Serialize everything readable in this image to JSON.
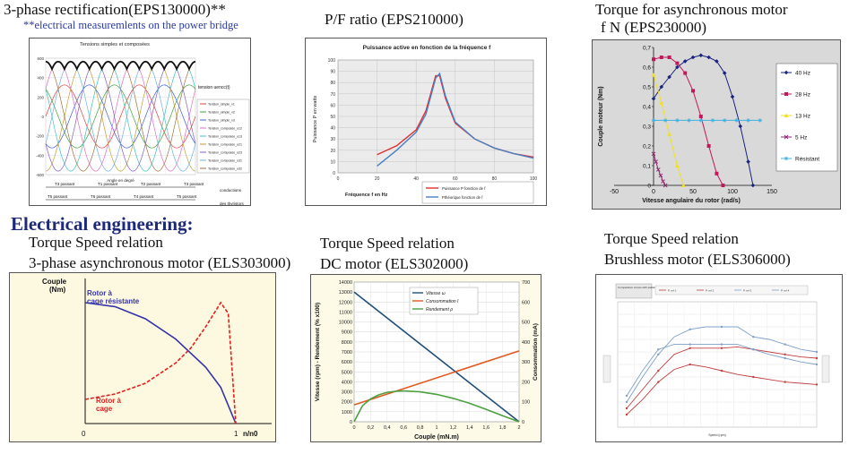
{
  "captions": {
    "rect_title": "3-phase rectification(EPS130000)**",
    "rect_sub": "**electrical measuremlents on the power bridge",
    "pf_title": "P/F ratio (EPS210000)",
    "async_title_l1": "Torque for asynchronous motor",
    "async_title_l2": "f  N (EPS230000)",
    "section_heading": "Electrical engineering:",
    "ts1_l1": "Torque Speed relation",
    "ts1_l2": "3-phase asynchronous motor  (ELS303000)",
    "ts2_l1": "Torque Speed relation",
    "ts2_l2": "DC motor (ELS302000)",
    "ts3_l1": "Torque Speed relation",
    "ts3_l2": "Brushless motor (ELS306000)"
  },
  "chart_data": [
    {
      "id": "rect",
      "type": "line",
      "title": "Tensions simples et composées",
      "xlabel": "Angle en degré",
      "ylim": [
        -600,
        600
      ],
      "yticks": [
        600,
        400,
        200,
        0,
        -200,
        -400,
        -600
      ],
      "legend_title": "tension uencc(t)",
      "legend": [
        "Tension_simple_v1",
        "Tension_simple_v2",
        "Tension_simple_v3",
        "Tension_composée_u12",
        "Tension_composée_u13",
        "Tension_composée_u21",
        "Tension_composée_u23",
        "Tension_composée_u31",
        "Tension_composée_u32"
      ],
      "conduction_label_1": "conductions",
      "conduction_label_2": "des thyristors",
      "top_conductions": [
        "T3 passant",
        "T1 passant",
        "T2 passant",
        "T3 passant"
      ],
      "bottom_conductions": [
        "T5 passant",
        "T6 passant",
        "T4 passant",
        "T5 passant"
      ]
    },
    {
      "id": "pf",
      "type": "line",
      "title": "Puissance active en fonction de la fréquence f",
      "xlabel": "Fréquence f en Hz",
      "ylabel": "Puissance P en watts",
      "xlim": [
        0,
        100
      ],
      "ylim": [
        0,
        100
      ],
      "xticks": [
        0,
        20,
        40,
        60,
        80,
        100
      ],
      "yticks": [
        0,
        10,
        20,
        30,
        40,
        50,
        60,
        70,
        80,
        90,
        100
      ],
      "series": [
        {
          "name": "Puissance P fonction de f",
          "color": "#e03030",
          "x": [
            20,
            30,
            40,
            45,
            50,
            52,
            55,
            60,
            70,
            80,
            90,
            100
          ],
          "y": [
            16,
            24,
            38,
            55,
            86,
            86,
            66,
            44,
            30,
            22,
            17,
            14
          ]
        },
        {
          "name": "Pthéorique fonction de f",
          "color": "#4a7fc0",
          "x": [
            20,
            30,
            40,
            45,
            50,
            52,
            55,
            60,
            70,
            80,
            90,
            100
          ],
          "y": [
            6,
            20,
            36,
            52,
            84,
            88,
            68,
            45,
            30,
            22,
            17,
            13
          ]
        }
      ]
    },
    {
      "id": "async",
      "type": "line",
      "xlabel": "Vitesse angulaire du rotor (rad/s)",
      "ylabel": "Couple moteur (Nm)",
      "xlim": [
        -50,
        150
      ],
      "ylim": [
        0,
        0.7
      ],
      "xticks": [
        -50,
        0,
        50,
        100,
        150
      ],
      "yticks": [
        "0",
        "0,1",
        "0,2",
        "0,3",
        "0,4",
        "0,5",
        "0,6",
        "0,7"
      ],
      "series": [
        {
          "name": "40 Hz",
          "color": "#1a237e",
          "marker": "diamond",
          "x": [
            0,
            10,
            20,
            30,
            40,
            50,
            60,
            70,
            80,
            90,
            100,
            110,
            120,
            126
          ],
          "y": [
            0.44,
            0.5,
            0.55,
            0.6,
            0.63,
            0.65,
            0.66,
            0.65,
            0.63,
            0.57,
            0.45,
            0.3,
            0.12,
            0.0
          ]
        },
        {
          "name": "28 Hz",
          "color": "#c2185b",
          "marker": "square",
          "x": [
            0,
            10,
            20,
            30,
            40,
            50,
            60,
            70,
            80,
            88
          ],
          "y": [
            0.64,
            0.65,
            0.65,
            0.62,
            0.57,
            0.48,
            0.35,
            0.2,
            0.06,
            0.0
          ]
        },
        {
          "name": "13 Hz",
          "color": "#f0e020",
          "marker": "triangle",
          "x": [
            0,
            10,
            20,
            30,
            38
          ],
          "y": [
            0.56,
            0.42,
            0.26,
            0.1,
            0.0
          ]
        },
        {
          "name": "5 Hz",
          "color": "#8e2470",
          "marker": "x",
          "x": [
            0,
            3,
            6,
            9,
            12,
            15
          ],
          "y": [
            0.16,
            0.12,
            0.08,
            0.05,
            0.02,
            0.0
          ]
        },
        {
          "name": "Résistant",
          "color": "#40b0e0",
          "marker": "star",
          "x": [
            0,
            15,
            30,
            45,
            60,
            75,
            90,
            105,
            120,
            135
          ],
          "y": [
            0.33,
            0.33,
            0.33,
            0.33,
            0.33,
            0.33,
            0.33,
            0.33,
            0.33,
            0.33
          ]
        }
      ]
    },
    {
      "id": "ts1",
      "type": "line",
      "ylabel_l1": "Couple",
      "ylabel_l2": "(Nm)",
      "x_zero": "0",
      "x_one": "1",
      "xlabel": "n/n0",
      "labels": {
        "resistante_l1": "Rotor à",
        "resistante_l2": "cage résistante",
        "cage_l1": "Rotor à",
        "cage_l2": "cage"
      },
      "series": [
        {
          "name": "Rotor à cage résistante",
          "color": "#3333aa",
          "x": [
            0,
            0.2,
            0.4,
            0.6,
            0.8,
            0.9,
            1.0
          ],
          "y": [
            0.9,
            0.87,
            0.78,
            0.63,
            0.42,
            0.27,
            0.0
          ]
        },
        {
          "name": "Rotor à cage",
          "color": "#e02020",
          "x": [
            0,
            0.2,
            0.4,
            0.6,
            0.7,
            0.8,
            0.9,
            0.95,
            1.0
          ],
          "y": [
            0.18,
            0.22,
            0.3,
            0.45,
            0.56,
            0.72,
            0.9,
            0.82,
            0.0
          ]
        }
      ]
    },
    {
      "id": "ts2",
      "type": "line",
      "xlabel": "Couple (mN.m)",
      "ylabel_left": "Vitesse (rpm) - Rendement (% x100)",
      "ylabel_right": "Consommation (mA)",
      "xlim": [
        0,
        2
      ],
      "ylim_left": [
        0,
        14000
      ],
      "ylim_right": [
        0,
        700
      ],
      "xticks": [
        "0",
        "0,2",
        "0,4",
        "0,6",
        "0,8",
        "1",
        "1,2",
        "1,4",
        "1,6",
        "1,8",
        "2"
      ],
      "yticks_left": [
        "0",
        "1000",
        "2000",
        "3000",
        "4000",
        "5000",
        "6000",
        "7000",
        "8000",
        "9000",
        "10000",
        "11000",
        "12000",
        "13000",
        "14000"
      ],
      "yticks_right": [
        "0",
        "100",
        "200",
        "300",
        "400",
        "500",
        "600",
        "700"
      ],
      "legend": [
        "Vitesse ω",
        "Consommation I",
        "Rendement ρ"
      ],
      "series": [
        {
          "name": "Vitesse ω",
          "color": "#1f4e79",
          "x": [
            0,
            2
          ],
          "y": [
            13000,
            0
          ]
        },
        {
          "name": "Consommation I",
          "color": "#e05a20",
          "x": [
            0,
            2
          ],
          "y": [
            1700,
            7100
          ]
        },
        {
          "name": "Rendement ρ",
          "color": "#4ca040",
          "x": [
            0,
            0.1,
            0.2,
            0.3,
            0.4,
            0.5,
            0.6,
            0.8,
            1.0,
            1.2,
            1.4,
            1.6,
            1.8,
            2.0
          ],
          "y": [
            0,
            1600,
            2300,
            2700,
            2950,
            3050,
            3100,
            3000,
            2750,
            2350,
            1850,
            1250,
            600,
            0
          ]
        }
      ]
    },
    {
      "id": "ts3",
      "type": "line",
      "title": "Comparative curves with stabilized winding at 100°C",
      "xlabel": "Speed (rpm)",
      "series": [
        {
          "name": "P. ref 1",
          "color": "#c04040",
          "x": [
            0,
            1,
            2,
            3,
            4,
            5,
            6,
            7,
            8,
            9,
            10,
            11,
            12
          ],
          "y": [
            0.15,
            0.3,
            0.45,
            0.58,
            0.63,
            0.63,
            0.63,
            0.64,
            0.62,
            0.6,
            0.58,
            0.56,
            0.55
          ]
        },
        {
          "name": "P. ref 2",
          "color": "#c04040",
          "x": [
            0,
            1,
            2,
            3,
            4,
            5,
            6,
            7,
            8,
            9,
            10,
            11,
            12
          ],
          "y": [
            0.1,
            0.22,
            0.36,
            0.46,
            0.5,
            0.48,
            0.45,
            0.42,
            0.4,
            0.38,
            0.36,
            0.35,
            0.34
          ]
        },
        {
          "name": "P. ref 3",
          "color": "#7fa0c8",
          "x": [
            0,
            1,
            2,
            3,
            4,
            5,
            6,
            7,
            8,
            9,
            10,
            11,
            12
          ],
          "y": [
            0.2,
            0.4,
            0.58,
            0.72,
            0.78,
            0.8,
            0.8,
            0.8,
            0.72,
            0.7,
            0.66,
            0.62,
            0.6
          ]
        },
        {
          "name": "P. ref 4",
          "color": "#7fa0c8",
          "x": [
            0,
            1,
            2,
            3,
            4,
            5,
            6,
            7,
            8,
            9,
            10,
            11,
            12
          ],
          "y": [
            0.25,
            0.45,
            0.62,
            0.66,
            0.66,
            0.66,
            0.66,
            0.66,
            0.62,
            0.58,
            0.55,
            0.52,
            0.5
          ]
        }
      ]
    }
  ]
}
